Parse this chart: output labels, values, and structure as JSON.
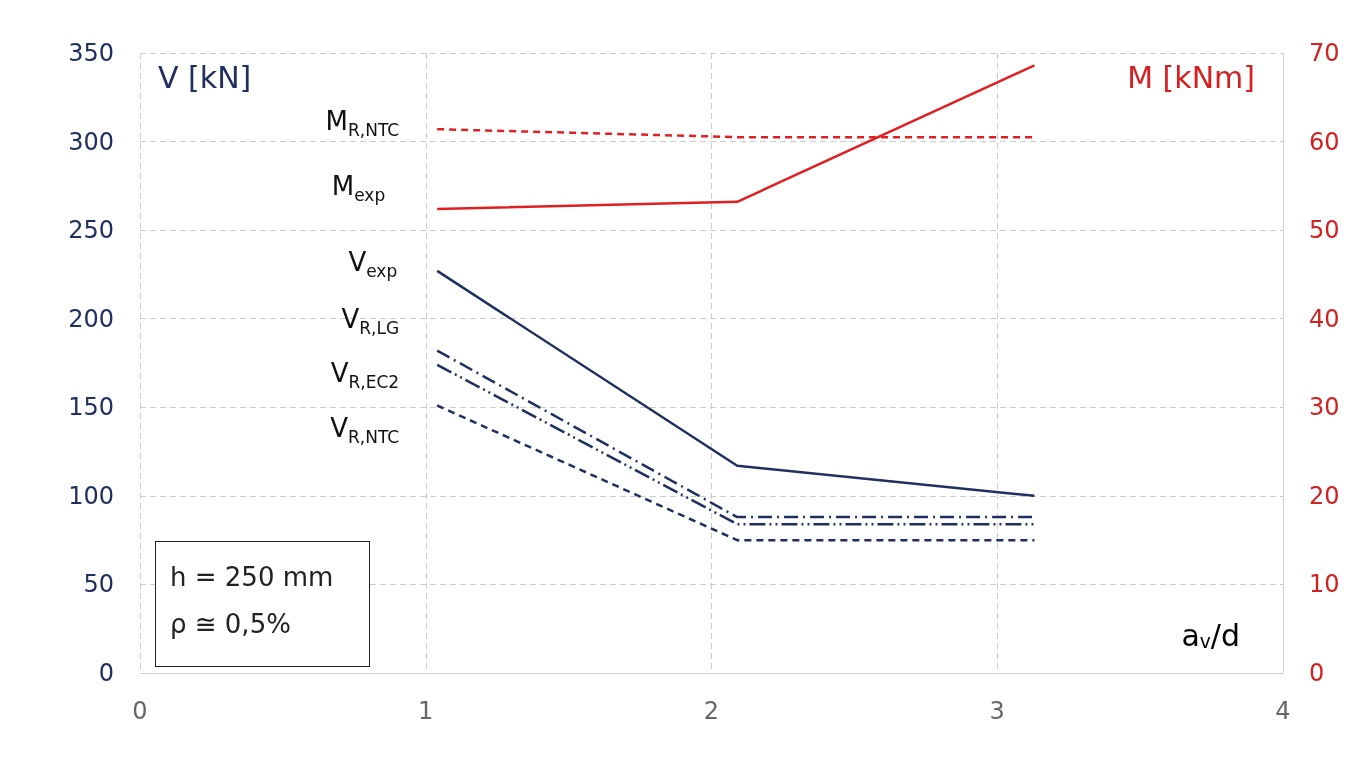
{
  "chart_data": {
    "type": "line",
    "xlabel": "a$_{v}$/d",
    "ylabel": "V [kN]",
    "y2label": "M [kNm]",
    "xlim": [
      0,
      4
    ],
    "xticks": [
      0,
      1,
      2,
      3,
      4
    ],
    "ylim": [
      0,
      350
    ],
    "yticks": [
      0,
      50,
      100,
      150,
      200,
      250,
      300,
      350
    ],
    "y2lim": [
      0,
      70
    ],
    "y2ticks": [
      0,
      10,
      20,
      30,
      40,
      50,
      60,
      70
    ],
    "grid": true,
    "legend": false,
    "annotations": [
      "h = 250 mm",
      "ρ  ≅ 0,5%"
    ],
    "series": [
      {
        "name": "M$_{R,NTC}$",
        "color": "#e02020",
        "axis": "y2",
        "line_style": "dashed",
        "x": [
          1.04,
          2.09,
          3.13
        ],
        "values": [
          61.4,
          60.5,
          60.5
        ]
      },
      {
        "name": "M$_{exp}$",
        "color": "#e02020",
        "axis": "y2",
        "line_style": "solid",
        "x": [
          1.04,
          2.09,
          3.13
        ],
        "values": [
          52.4,
          53.2,
          68.6
        ]
      },
      {
        "name": "V$_{exp}$",
        "color": "#1f3060",
        "line_style": "solid",
        "x": [
          1.04,
          2.09,
          3.13
        ],
        "values": [
          227,
          117,
          100
        ]
      },
      {
        "name": "V$_{R,LG}$",
        "color": "#1f3060",
        "line_style": "dashdot",
        "x": [
          1.04,
          2.09,
          3.13
        ],
        "values": [
          182,
          88,
          88
        ]
      },
      {
        "name": "V$_{R,EC2}$",
        "color": "#1f3060",
        "line_style": "dashdotdot",
        "x": [
          1.04,
          2.09,
          3.13
        ],
        "values": [
          174,
          84,
          84
        ]
      },
      {
        "name": "V$_{R,NTC}$",
        "color": "#1f3060",
        "line_style": "dashed",
        "x": [
          1.04,
          2.09,
          3.13
        ],
        "values": [
          151,
          75,
          75
        ]
      }
    ]
  }
}
